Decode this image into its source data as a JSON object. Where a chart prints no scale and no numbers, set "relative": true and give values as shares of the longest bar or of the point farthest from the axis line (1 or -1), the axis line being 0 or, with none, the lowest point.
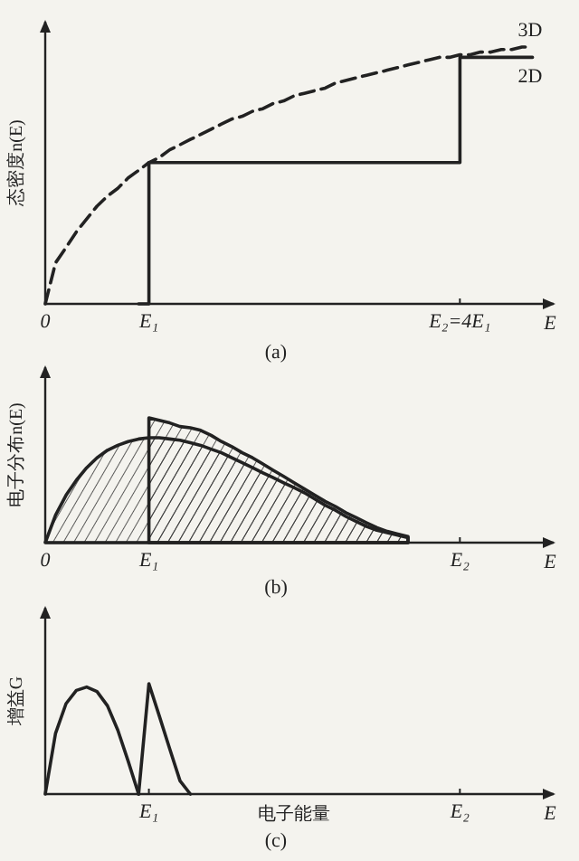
{
  "chart_data": [
    {
      "type": "line",
      "relative": true,
      "xlabel": "E",
      "ylabel": "态密度n(E)",
      "annotations": [
        "(a)"
      ],
      "categories": [
        "0",
        null,
        null,
        null,
        null,
        null,
        null,
        null,
        null,
        null,
        "E₁",
        null,
        null,
        null,
        null,
        null,
        null,
        null,
        null,
        null,
        null,
        null,
        null,
        null,
        null,
        null,
        null,
        null,
        null,
        null,
        null,
        null,
        null,
        null,
        null,
        null,
        null,
        null,
        null,
        null,
        "E₂=4E₁",
        null,
        null,
        null,
        null,
        null,
        null,
        null,
        null
      ],
      "series": [
        {
          "name": "3D",
          "color": "#222222",
          "line_style": "dashed",
          "values": [
            0,
            0.16,
            0.22,
            0.28,
            0.33,
            0.38,
            0.42,
            0.45,
            0.49,
            0.52,
            0.55,
            0.57,
            0.6,
            0.62,
            0.64,
            0.66,
            0.68,
            0.7,
            0.72,
            0.73,
            0.75,
            0.76,
            0.78,
            0.79,
            0.81,
            0.82,
            0.83,
            0.84,
            0.86,
            0.87,
            0.88,
            0.89,
            0.9,
            0.91,
            0.92,
            0.93,
            0.94,
            0.95,
            0.96,
            0.96,
            0.97,
            0.97,
            0.98,
            0.98,
            0.99,
            0.99,
            1.0,
            1.0,
            null
          ]
        },
        {
          "name": "2D",
          "color": "#222222",
          "type": "step",
          "line_style": "solid",
          "values": [
            null,
            null,
            null,
            null,
            null,
            null,
            null,
            null,
            null,
            0,
            0.55,
            0.55,
            0.55,
            0.55,
            0.55,
            0.55,
            0.55,
            0.55,
            0.55,
            0.55,
            0.55,
            0.55,
            0.55,
            0.55,
            0.55,
            0.55,
            0.55,
            0.55,
            0.55,
            0.55,
            0.55,
            0.55,
            0.55,
            0.55,
            0.55,
            0.55,
            0.55,
            0.55,
            0.55,
            0.55,
            0.96,
            0.96,
            0.96,
            0.96,
            0.96,
            0.96,
            0.96,
            0.96,
            null
          ]
        }
      ]
    },
    {
      "type": "area",
      "relative": true,
      "xlabel": "E",
      "ylabel": "电子分布n(E)",
      "annotations": [
        "(b)"
      ],
      "categories": [
        "0",
        null,
        null,
        null,
        null,
        null,
        null,
        null,
        null,
        null,
        "E₁",
        null,
        null,
        null,
        null,
        null,
        null,
        null,
        null,
        null,
        null,
        null,
        null,
        null,
        null,
        null,
        null,
        null,
        null,
        null,
        null,
        null,
        null,
        null,
        null,
        null,
        null,
        null,
        null,
        null,
        "E₂",
        null,
        null,
        null,
        null,
        null,
        null,
        null,
        null
      ],
      "series": [
        {
          "color": "#222222",
          "values": [
            0,
            0.22,
            0.38,
            0.5,
            0.6,
            0.68,
            0.74,
            0.78,
            0.81,
            0.83,
            0.84,
            0.84,
            0.83,
            0.82,
            0.8,
            0.78,
            0.75,
            0.72,
            0.68,
            0.64,
            0.6,
            0.56,
            0.52,
            0.48,
            0.44,
            0.4,
            0.35,
            0.3,
            0.26,
            0.21,
            0.17,
            0.13,
            0.1,
            0.08,
            0.06,
            0.04,
            null,
            null,
            null,
            null,
            null,
            null,
            null,
            null,
            null,
            null,
            null,
            null,
            null
          ]
        },
        {
          "color": "#222222",
          "values": [
            null,
            null,
            null,
            null,
            null,
            null,
            null,
            null,
            null,
            null,
            1,
            0.98,
            0.96,
            0.93,
            0.92,
            0.9,
            0.86,
            0.81,
            0.77,
            0.72,
            0.68,
            0.63,
            0.58,
            0.53,
            0.48,
            0.43,
            0.38,
            0.33,
            0.29,
            0.24,
            0.2,
            0.16,
            0.12,
            0.09,
            0.07,
            0.05,
            null,
            null,
            null,
            null,
            null,
            null,
            null,
            null,
            null,
            null,
            null,
            null,
            null
          ]
        }
      ]
    },
    {
      "type": "line",
      "relative": true,
      "xlabel": "电子能量",
      "ylabel": "增益G",
      "annotations": [
        "(c)",
        "E"
      ],
      "categories": [
        null,
        null,
        null,
        null,
        null,
        null,
        null,
        null,
        null,
        null,
        "E₁",
        null,
        null,
        null,
        null,
        null,
        null,
        null,
        null,
        null,
        null,
        null,
        null,
        null,
        null,
        null,
        null,
        null,
        null,
        null,
        null,
        null,
        null,
        null,
        null,
        null,
        null,
        null,
        null,
        null,
        "E₂",
        null,
        null,
        null,
        null,
        null,
        null,
        null,
        null
      ],
      "series": [
        {
          "color": "#222222",
          "values": [
            0,
            0.55,
            0.82,
            0.94,
            0.97,
            0.93,
            0.8,
            0.58,
            0.3,
            0,
            null,
            null,
            null,
            null,
            null,
            null,
            null,
            null,
            null,
            null,
            null,
            null,
            null,
            null,
            null,
            null,
            null,
            null,
            null,
            null,
            null,
            null,
            null,
            null,
            null,
            null,
            null,
            null,
            null,
            null,
            null,
            null,
            null,
            null,
            null,
            null,
            null,
            null,
            null
          ]
        },
        {
          "color": "#222222",
          "values": [
            null,
            null,
            null,
            null,
            null,
            null,
            null,
            null,
            null,
            0,
            1,
            0.71,
            0.41,
            0.12,
            0,
            null,
            null,
            null,
            null,
            null,
            null,
            null,
            null,
            null,
            null,
            null,
            null,
            null,
            null,
            null,
            null,
            null,
            null,
            null,
            null,
            null,
            null,
            null,
            null,
            null,
            null,
            null,
            null,
            null,
            null,
            null,
            null,
            null,
            null
          ]
        }
      ]
    }
  ]
}
